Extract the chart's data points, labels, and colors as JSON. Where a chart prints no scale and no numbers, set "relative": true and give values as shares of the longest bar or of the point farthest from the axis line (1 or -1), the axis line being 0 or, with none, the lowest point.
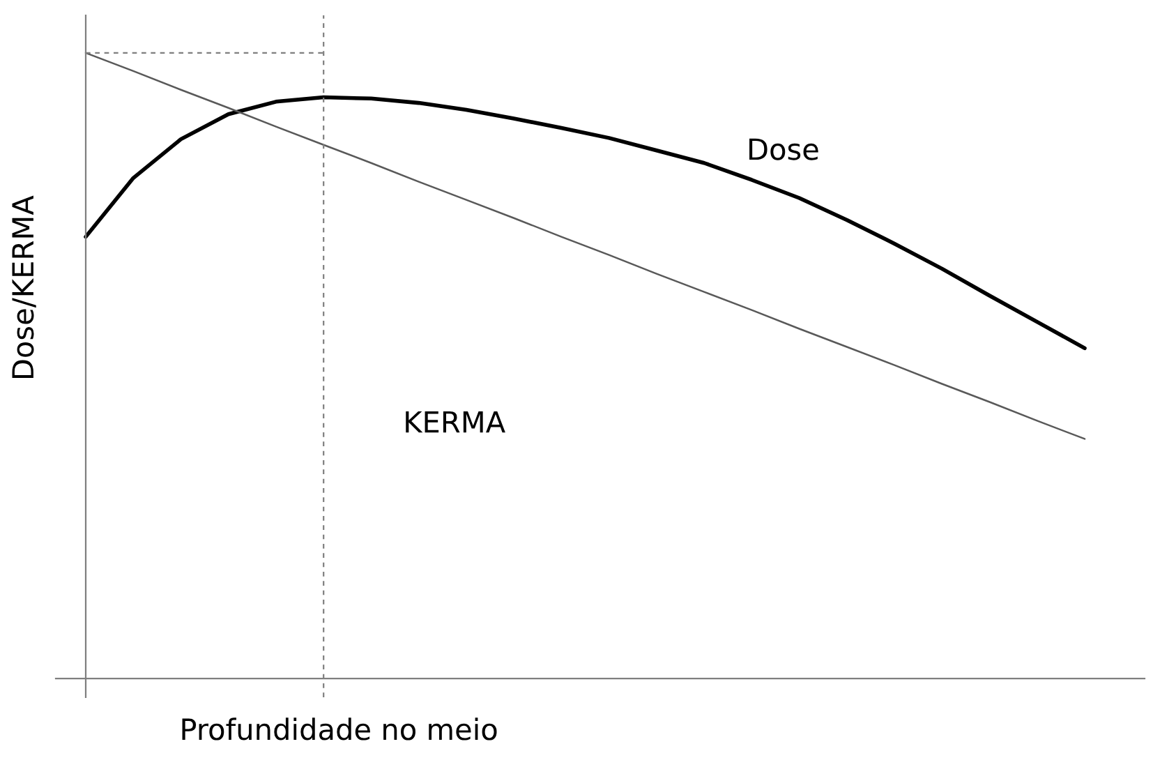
{
  "chart_data": {
    "type": "line",
    "relative": true,
    "xlabel": "Profundidade no meio",
    "ylabel": "Dose/KERMA",
    "legend": false,
    "categories": [
      null,
      null,
      null,
      null,
      null,
      null,
      null,
      null,
      null,
      null,
      null,
      null,
      null,
      null,
      null,
      null,
      null,
      null,
      null,
      null,
      null,
      null
    ],
    "series": [
      {
        "color": "#000000",
        "values": [
          0.706,
          0.8,
          0.862,
          0.902,
          0.922,
          0.929,
          0.927,
          0.92,
          0.909,
          0.895,
          0.88,
          0.864,
          0.844,
          0.824,
          0.797,
          0.768,
          0.733,
          0.695,
          0.655,
          0.612,
          0.57,
          0.528
        ]
      },
      {
        "color": "#595959",
        "values": [
          1,
          0.971,
          0.941,
          0.912,
          0.882,
          0.853,
          0.824,
          0.794,
          0.765,
          0.736,
          0.706,
          0.677,
          0.647,
          0.618,
          0.589,
          0.559,
          0.53,
          0.501,
          0.471,
          0.442,
          0.412,
          0.383
        ]
      }
    ],
    "ref_lines": [
      {
        "axis": "y",
        "value": 1,
        "color": "#7f7f7f",
        "line_style": "dashed"
      }
    ],
    "annotations": [
      "Dose",
      "KERMA"
    ]
  }
}
